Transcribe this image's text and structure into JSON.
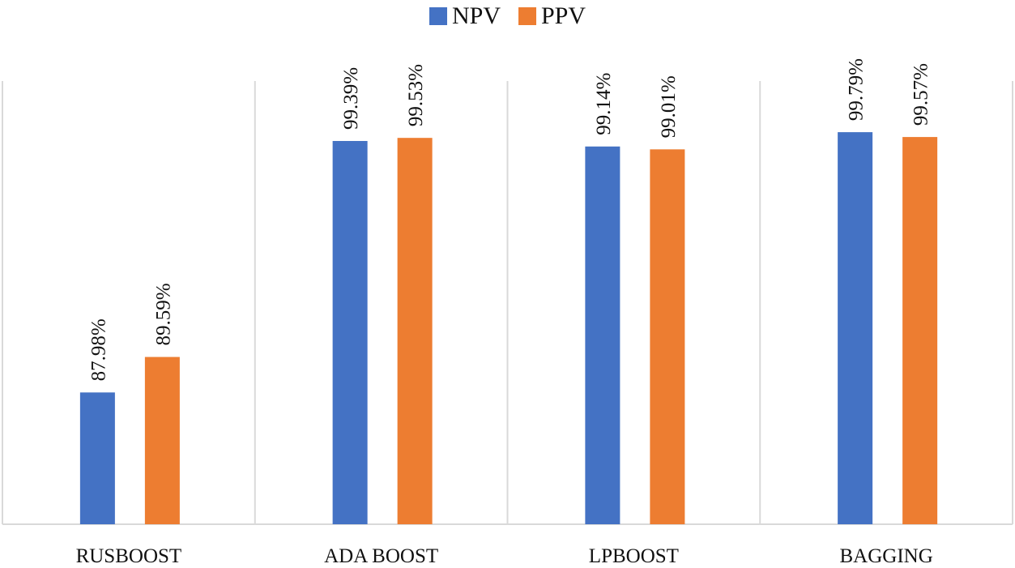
{
  "chart_data": {
    "type": "bar",
    "title": "",
    "xlabel": "",
    "ylabel": "",
    "categories": [
      "RUSBOOST",
      "ADA BOOST",
      "LPBOOST",
      "BAGGING"
    ],
    "series": [
      {
        "name": "NPV",
        "color": "#4472C4",
        "values": [
          87.98,
          99.39,
          99.14,
          99.79
        ],
        "labels": [
          "87.98%",
          "99.39%",
          "99.14%",
          "99.79%"
        ]
      },
      {
        "name": "PPV",
        "color": "#ED7D31",
        "values": [
          89.59,
          99.53,
          99.01,
          99.57
        ],
        "labels": [
          "89.59%",
          "99.53%",
          "99.01%",
          "99.57%"
        ]
      }
    ],
    "ylim": [
      82,
      100
    ],
    "legend_position": "top-center",
    "grid": "vertical category separators"
  }
}
